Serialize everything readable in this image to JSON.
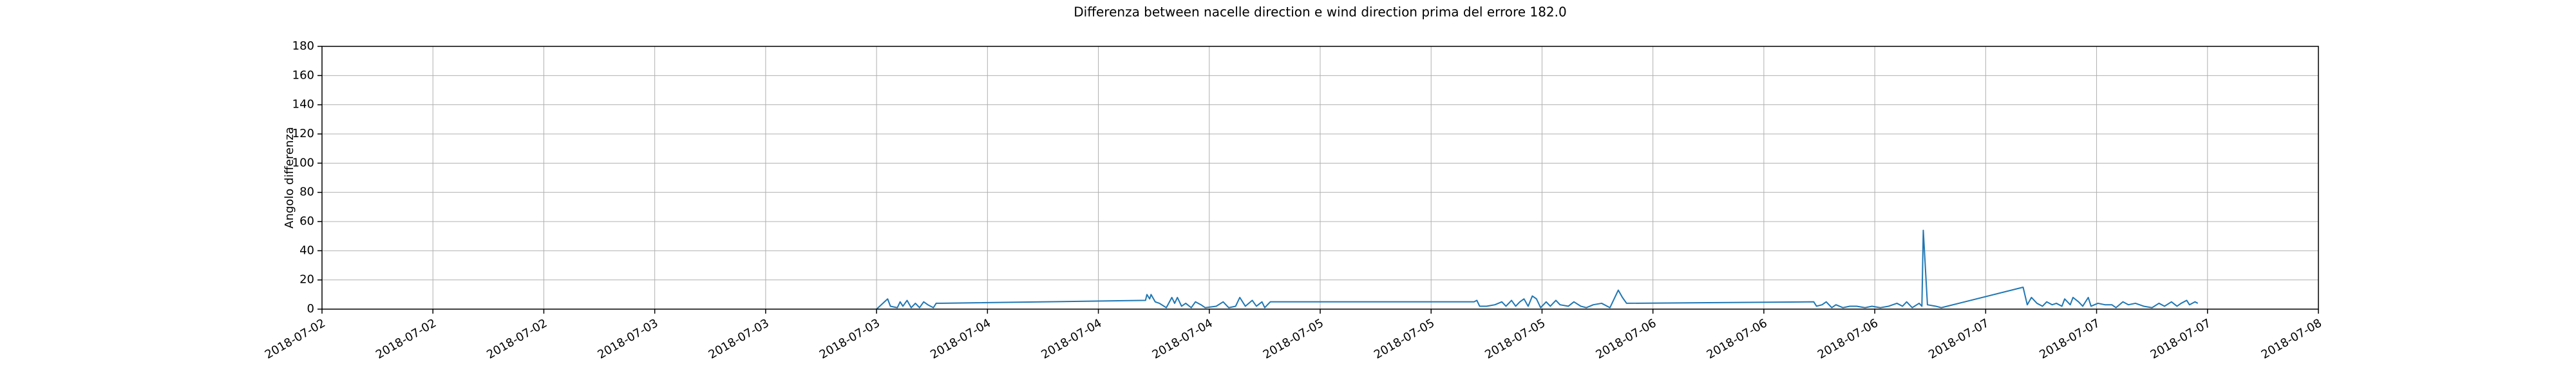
{
  "chart_data": {
    "type": "line",
    "title": "Differenza between nacelle direction e wind direction prima del errore 182.0",
    "y_label": "Angolo differenza",
    "color": "#1f77b4",
    "grid": true,
    "xlim": [
      "2018-07-02 00:00",
      "2018-07-08 00:00"
    ],
    "xticks": [
      {
        "value": "2018-07-02 00:00",
        "label": "2018-07-02"
      },
      {
        "value": "2018-07-02 08:00",
        "label": "2018-07-02"
      },
      {
        "value": "2018-07-02 16:00",
        "label": "2018-07-02"
      },
      {
        "value": "2018-07-03 00:00",
        "label": "2018-07-03"
      },
      {
        "value": "2018-07-03 08:00",
        "label": "2018-07-03"
      },
      {
        "value": "2018-07-03 16:00",
        "label": "2018-07-03"
      },
      {
        "value": "2018-07-04 00:00",
        "label": "2018-07-04"
      },
      {
        "value": "2018-07-04 08:00",
        "label": "2018-07-04"
      },
      {
        "value": "2018-07-04 16:00",
        "label": "2018-07-04"
      },
      {
        "value": "2018-07-05 00:00",
        "label": "2018-07-05"
      },
      {
        "value": "2018-07-05 08:00",
        "label": "2018-07-05"
      },
      {
        "value": "2018-07-05 16:00",
        "label": "2018-07-05"
      },
      {
        "value": "2018-07-06 00:00",
        "label": "2018-07-06"
      },
      {
        "value": "2018-07-06 08:00",
        "label": "2018-07-06"
      },
      {
        "value": "2018-07-06 16:00",
        "label": "2018-07-06"
      },
      {
        "value": "2018-07-07 00:00",
        "label": "2018-07-07"
      },
      {
        "value": "2018-07-07 08:00",
        "label": "2018-07-07"
      },
      {
        "value": "2018-07-07 16:00",
        "label": "2018-07-07"
      },
      {
        "value": "2018-07-08 00:00",
        "label": "2018-07-08"
      }
    ],
    "ylim": [
      0,
      180
    ],
    "yticks": [
      0,
      20,
      40,
      60,
      80,
      100,
      120,
      140,
      160,
      180
    ],
    "x": [
      "2018-07-03 16:00",
      "2018-07-03 16:48",
      "2018-07-03 17:00",
      "2018-07-03 17:30",
      "2018-07-03 17:42",
      "2018-07-03 17:54",
      "2018-07-03 18:12",
      "2018-07-03 18:30",
      "2018-07-03 18:48",
      "2018-07-03 19:06",
      "2018-07-03 19:24",
      "2018-07-03 19:42",
      "2018-07-03 20:06",
      "2018-07-03 20:18",
      "2018-07-03 20:42",
      "2018-07-04 11:24",
      "2018-07-04 11:30",
      "2018-07-04 11:42",
      "2018-07-04 11:48",
      "2018-07-04 12:06",
      "2018-07-04 12:24",
      "2018-07-04 12:54",
      "2018-07-04 13:18",
      "2018-07-04 13:30",
      "2018-07-04 13:42",
      "2018-07-04 14:00",
      "2018-07-04 14:18",
      "2018-07-04 14:42",
      "2018-07-04 15:00",
      "2018-07-04 15:24",
      "2018-07-04 15:42",
      "2018-07-04 16:30",
      "2018-07-04 17:00",
      "2018-07-04 17:24",
      "2018-07-04 17:54",
      "2018-07-04 18:12",
      "2018-07-04 18:36",
      "2018-07-04 19:06",
      "2018-07-04 19:24",
      "2018-07-04 19:48",
      "2018-07-04 20:00",
      "2018-07-04 20:24",
      "2018-07-05 11:06",
      "2018-07-05 11:18",
      "2018-07-05 11:30",
      "2018-07-05 12:00",
      "2018-07-05 12:36",
      "2018-07-05 13:06",
      "2018-07-05 13:24",
      "2018-07-05 13:48",
      "2018-07-05 14:06",
      "2018-07-05 14:24",
      "2018-07-05 14:42",
      "2018-07-05 15:00",
      "2018-07-05 15:18",
      "2018-07-05 15:36",
      "2018-07-05 15:54",
      "2018-07-05 16:18",
      "2018-07-05 16:36",
      "2018-07-05 17:00",
      "2018-07-05 17:18",
      "2018-07-05 17:54",
      "2018-07-05 18:18",
      "2018-07-05 18:48",
      "2018-07-05 19:12",
      "2018-07-05 19:42",
      "2018-07-05 20:18",
      "2018-07-05 20:54",
      "2018-07-05 21:30",
      "2018-07-05 21:48",
      "2018-07-05 22:06",
      "2018-07-06 11:36",
      "2018-07-06 11:48",
      "2018-07-06 12:12",
      "2018-07-06 12:30",
      "2018-07-06 12:54",
      "2018-07-06 13:12",
      "2018-07-06 13:42",
      "2018-07-06 14:12",
      "2018-07-06 14:42",
      "2018-07-06 15:18",
      "2018-07-06 15:48",
      "2018-07-06 16:24",
      "2018-07-06 17:00",
      "2018-07-06 17:36",
      "2018-07-06 18:00",
      "2018-07-06 18:18",
      "2018-07-06 18:42",
      "2018-07-06 19:12",
      "2018-07-06 19:24",
      "2018-07-06 19:30",
      "2018-07-06 19:48",
      "2018-07-06 20:24",
      "2018-07-06 20:48",
      "2018-07-07 02:42",
      "2018-07-07 03:00",
      "2018-07-07 03:18",
      "2018-07-07 03:42",
      "2018-07-07 04:06",
      "2018-07-07 04:24",
      "2018-07-07 04:48",
      "2018-07-07 05:06",
      "2018-07-07 05:30",
      "2018-07-07 05:42",
      "2018-07-07 06:06",
      "2018-07-07 06:18",
      "2018-07-07 06:42",
      "2018-07-07 07:00",
      "2018-07-07 07:24",
      "2018-07-07 07:36",
      "2018-07-07 08:06",
      "2018-07-07 08:36",
      "2018-07-07 09:06",
      "2018-07-07 09:24",
      "2018-07-07 09:54",
      "2018-07-07 10:18",
      "2018-07-07 10:48",
      "2018-07-07 11:24",
      "2018-07-07 12:00",
      "2018-07-07 12:30",
      "2018-07-07 12:54",
      "2018-07-07 13:24",
      "2018-07-07 13:48",
      "2018-07-07 14:06",
      "2018-07-07 14:30",
      "2018-07-07 14:42",
      "2018-07-07 15:06",
      "2018-07-07 15:18"
    ],
    "values": [
      0,
      7,
      2,
      1,
      5,
      2,
      6,
      1,
      4,
      1,
      5,
      3,
      1,
      4,
      4,
      6,
      10,
      7,
      10,
      5,
      4,
      1,
      8,
      4,
      8,
      2,
      4,
      1,
      5,
      3,
      1,
      2,
      5,
      1,
      2,
      8,
      2,
      6,
      2,
      5,
      1,
      5,
      5,
      6,
      2,
      2,
      3,
      5,
      2,
      6,
      2,
      5,
      7,
      2,
      9,
      7,
      1,
      5,
      2,
      6,
      3,
      2,
      5,
      2,
      1,
      3,
      4,
      1,
      13,
      8,
      4,
      5,
      2,
      3,
      5,
      1,
      3,
      1,
      2,
      2,
      1,
      2,
      1,
      2,
      4,
      2,
      5,
      1,
      4,
      2,
      54,
      3,
      2,
      1,
      15,
      3,
      8,
      4,
      2,
      5,
      3,
      4,
      2,
      7,
      3,
      8,
      5,
      2,
      8,
      2,
      4,
      3,
      3,
      1,
      5,
      3,
      4,
      2,
      1,
      4,
      2,
      5,
      2,
      4,
      6,
      3,
      5,
      4
    ]
  }
}
